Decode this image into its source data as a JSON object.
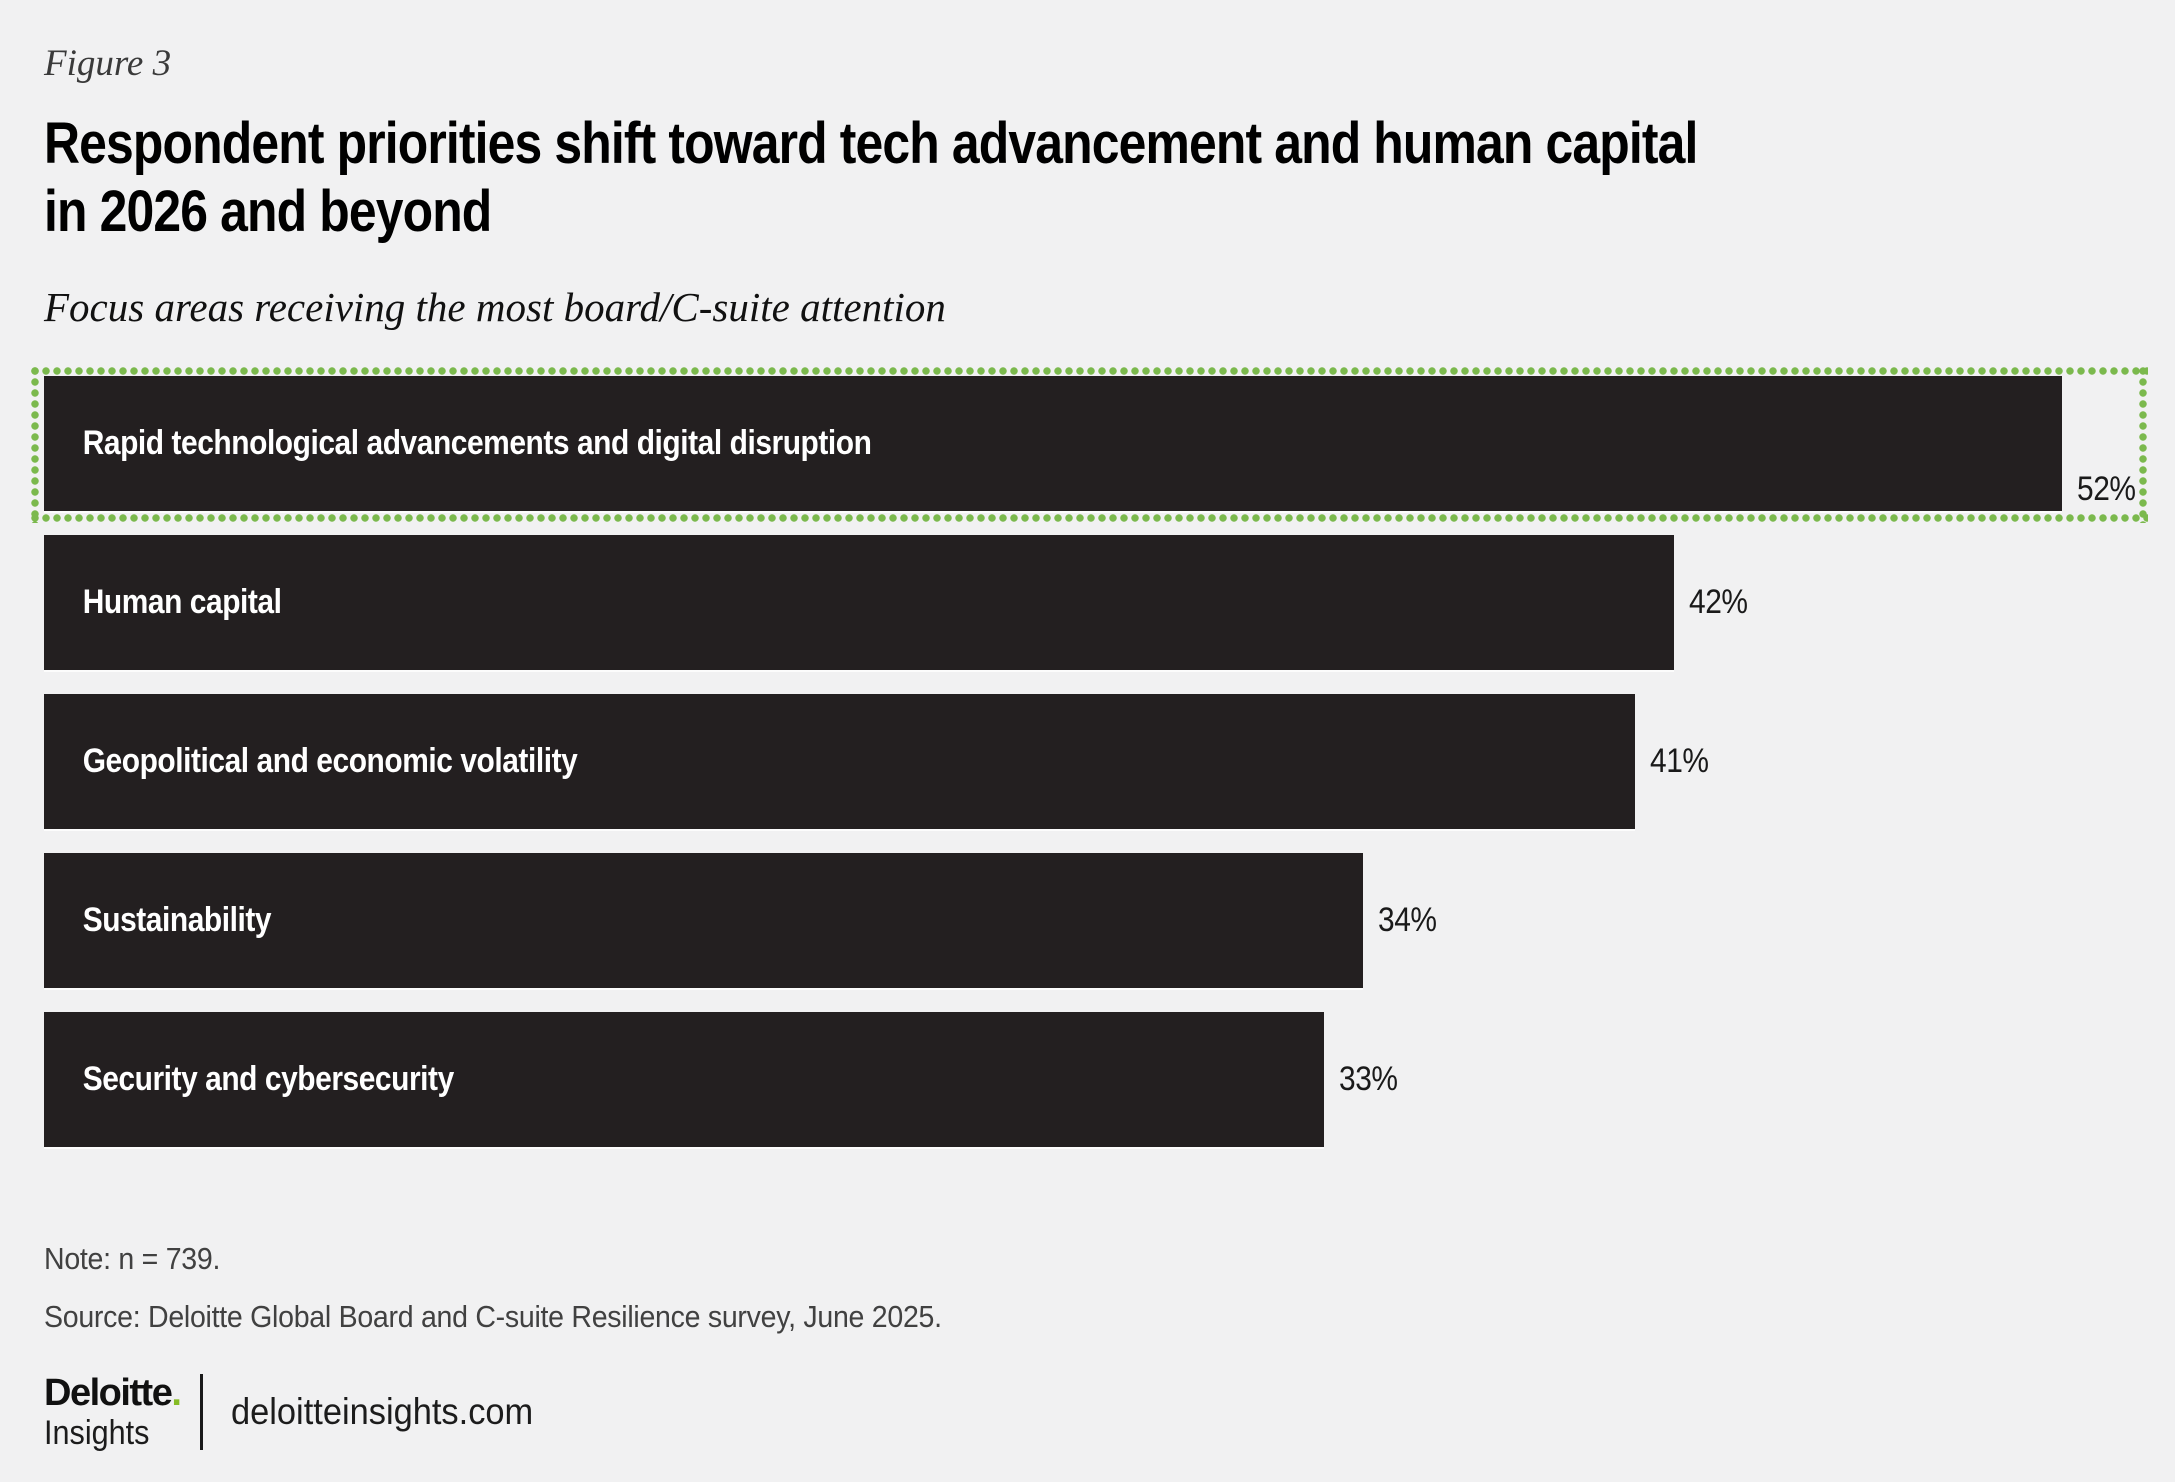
{
  "figure_label": "Figure 3",
  "title": {
    "line1": "Respondent priorities shift toward tech advancement and human capital",
    "line2": "in 2026 and beyond"
  },
  "subtitle": "Focus areas receiving the most board/C-suite attention",
  "chart_data": {
    "type": "bar",
    "orientation": "horizontal",
    "title": "Focus areas receiving the most board/C-suite attention",
    "categories": [
      "Rapid technological advancements and digital disruption",
      "Human capital",
      "Geopolitical and economic volatility",
      "Sustainability",
      "Security and cybersecurity"
    ],
    "values": [
      52,
      42,
      41,
      34,
      33
    ],
    "value_labels": [
      "52%",
      "42%",
      "41%",
      "34%",
      "33%"
    ],
    "unit": "%",
    "xlim": [
      0,
      52
    ],
    "grid": false,
    "legend": "none",
    "highlighted_category": "Rapid technological advancements and digital disruption",
    "highlight_style": "green dotted border frame",
    "bar_color": "#231f20",
    "bar_label_color": "#ffffff",
    "value_label_color": "#1a1a1a",
    "highlight_border_color": "#7bb94d"
  },
  "note": "Note: n = 739.",
  "source": "Source: Deloitte Global Board and C-suite Resilience survey, June 2025.",
  "footer": {
    "brand_name": "Deloitte",
    "brand_dot": ".",
    "brand_sub": "Insights",
    "site": "deloitteinsights.com"
  },
  "colors": {
    "background": "#f1f1f2",
    "bar": "#231f20",
    "dotted_frame_green": "#7bb94d",
    "logo_dot_green": "#86bc25",
    "heading_text": "#000000",
    "muted_text": "#414141"
  }
}
